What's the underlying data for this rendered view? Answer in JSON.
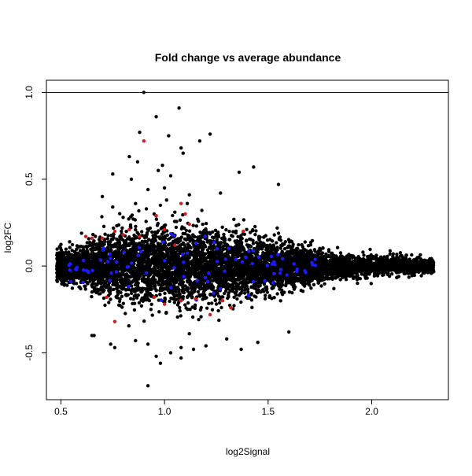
{
  "chart_data": {
    "type": "scatter",
    "title": "Fold change vs average abundance",
    "xlabel": "log2Signal",
    "ylabel": "log2FC",
    "xlim": [
      0.43,
      2.37
    ],
    "ylim": [
      -0.77,
      1.07
    ],
    "xticks": [
      0.5,
      1.0,
      1.5,
      2.0
    ],
    "xtick_labels": [
      "0.5",
      "1.0",
      "1.5",
      "2.0"
    ],
    "yticks": [
      -0.5,
      0.0,
      0.5,
      1.0
    ],
    "ytick_labels": [
      "-0.5",
      "0.0",
      "0.5",
      "1.0"
    ],
    "grid": false,
    "legend": "none",
    "reference_line": {
      "y": 1.0,
      "color": "#0000cd"
    },
    "colors": {
      "points": "#000000",
      "highlight_red": "#d7191c",
      "highlight_blue": "#1a1aff",
      "hline": "#0000cd"
    },
    "series": [
      {
        "color": "#000000",
        "description_points": "dense cloud around log2FC 0; spread largest near log2Signal 0.8-1.2 and tapering toward 2.3",
        "x": [
          0.9,
          1.07,
          0.96,
          0.88,
          1.02,
          1.22,
          1.17,
          1.08,
          1.09,
          0.83,
          0.87,
          0.75,
          1.43,
          0.99,
          0.97,
          1.36,
          1.55,
          0.84,
          1.03,
          1.0,
          1.12,
          0.92,
          1.27,
          0.7,
          1.01,
          0.98,
          1.11,
          0.75,
          0.86,
          1.18,
          0.95,
          1.05,
          0.8,
          0.92,
          1.14,
          0.76,
          1.3,
          1.45,
          1.2,
          0.65,
          1.6,
          1.03,
          0.96,
          1.08,
          0.74,
          0.66,
          0.86,
          0.98,
          0.92,
          1.08,
          1.37,
          1.12
        ],
        "y": [
          1.0,
          0.91,
          0.86,
          0.77,
          0.75,
          0.76,
          0.72,
          0.68,
          0.65,
          0.63,
          0.6,
          0.53,
          0.57,
          0.58,
          0.55,
          0.54,
          0.47,
          0.5,
          0.52,
          0.45,
          0.41,
          0.44,
          0.42,
          0.4,
          0.38,
          0.35,
          0.36,
          0.34,
          0.36,
          0.32,
          0.3,
          0.31,
          0.28,
          -0.45,
          -0.48,
          -0.47,
          -0.42,
          -0.44,
          -0.46,
          -0.4,
          -0.38,
          -0.5,
          -0.52,
          -0.53,
          -0.45,
          -0.4,
          -0.43,
          -0.56,
          -0.69,
          -0.47,
          -0.48,
          -0.39
        ]
      }
    ]
  }
}
